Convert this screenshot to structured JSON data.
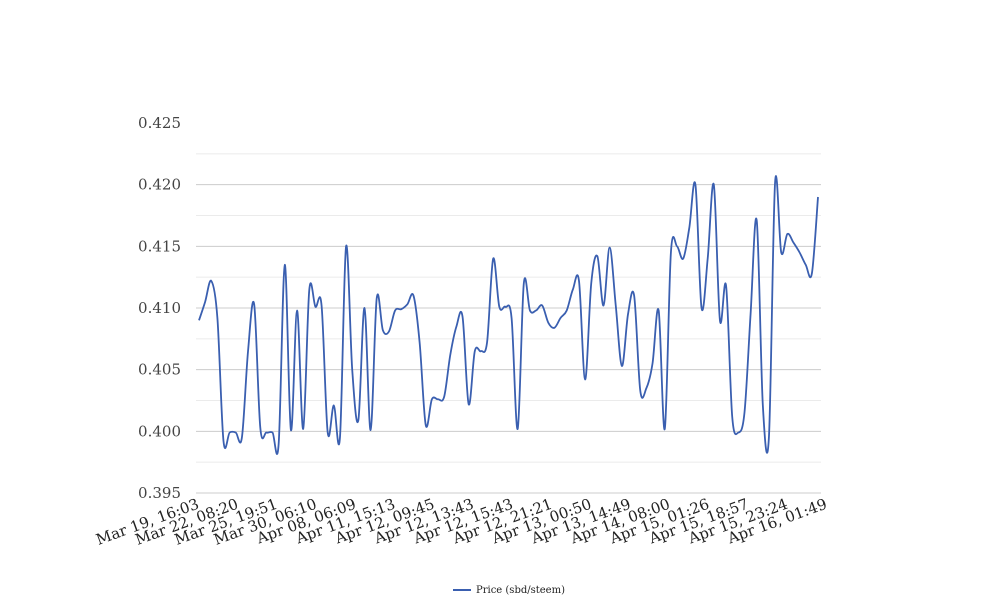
{
  "chart_data": {
    "type": "line",
    "ylim": [
      0.395,
      0.425
    ],
    "y_ticks": [
      "0.395",
      "0.400",
      "0.405",
      "0.410",
      "0.415",
      "0.420",
      "0.425"
    ],
    "x_tick_labels": [
      "Mar 19, 16:03",
      "Mar 22, 08:20",
      "Mar 25, 19:51",
      "Mar 30, 06:10",
      "Apr 08, 06:09",
      "Apr 11, 15:13",
      "Apr 12, 09:45",
      "Apr 12, 13:43",
      "Apr 12, 15:43",
      "Apr 12, 21:21",
      "Apr 13, 00:50",
      "Apr 13, 14:49",
      "Apr 14, 08:00",
      "Apr 15, 01:26",
      "Apr 15, 18:57",
      "Apr 15, 23:24",
      "Apr 16, 01:49"
    ],
    "grid": true,
    "legend": "bottom-center",
    "series": [
      {
        "name": "Price (sbd/steem)",
        "color": "#3a5fb0",
        "values": [
          0.409,
          0.4105,
          0.4122,
          0.4092,
          0.3992,
          0.3999,
          0.3999,
          0.3995,
          0.4065,
          0.4103,
          0.4003,
          0.3999,
          0.3999,
          0.399,
          0.4135,
          0.4001,
          0.4098,
          0.4002,
          0.4115,
          0.4101,
          0.4102,
          0.3999,
          0.4021,
          0.3995,
          0.415,
          0.405,
          0.4009,
          0.41,
          0.4001,
          0.4108,
          0.4082,
          0.4081,
          0.4098,
          0.4099,
          0.4103,
          0.411,
          0.4072,
          0.4005,
          0.4026,
          0.4026,
          0.4028,
          0.4062,
          0.4085,
          0.4093,
          0.4022,
          0.4065,
          0.4065,
          0.4072,
          0.414,
          0.4101,
          0.4101,
          0.4092,
          0.4002,
          0.412,
          0.4098,
          0.4098,
          0.4102,
          0.4088,
          0.4084,
          0.4092,
          0.4098,
          0.4115,
          0.4122,
          0.4042,
          0.412,
          0.4142,
          0.4102,
          0.4149,
          0.4102,
          0.4053,
          0.4095,
          0.411,
          0.4033,
          0.4035,
          0.4055,
          0.4098,
          0.4002,
          0.4145,
          0.415,
          0.414,
          0.4165,
          0.42,
          0.41,
          0.414,
          0.42,
          0.409,
          0.4118,
          0.4012,
          0.3999,
          0.4015,
          0.4095,
          0.4171,
          0.4021,
          0.3996,
          0.4202,
          0.4145,
          0.416,
          0.4153,
          0.4145,
          0.4135,
          0.4128,
          0.419
        ]
      }
    ]
  }
}
